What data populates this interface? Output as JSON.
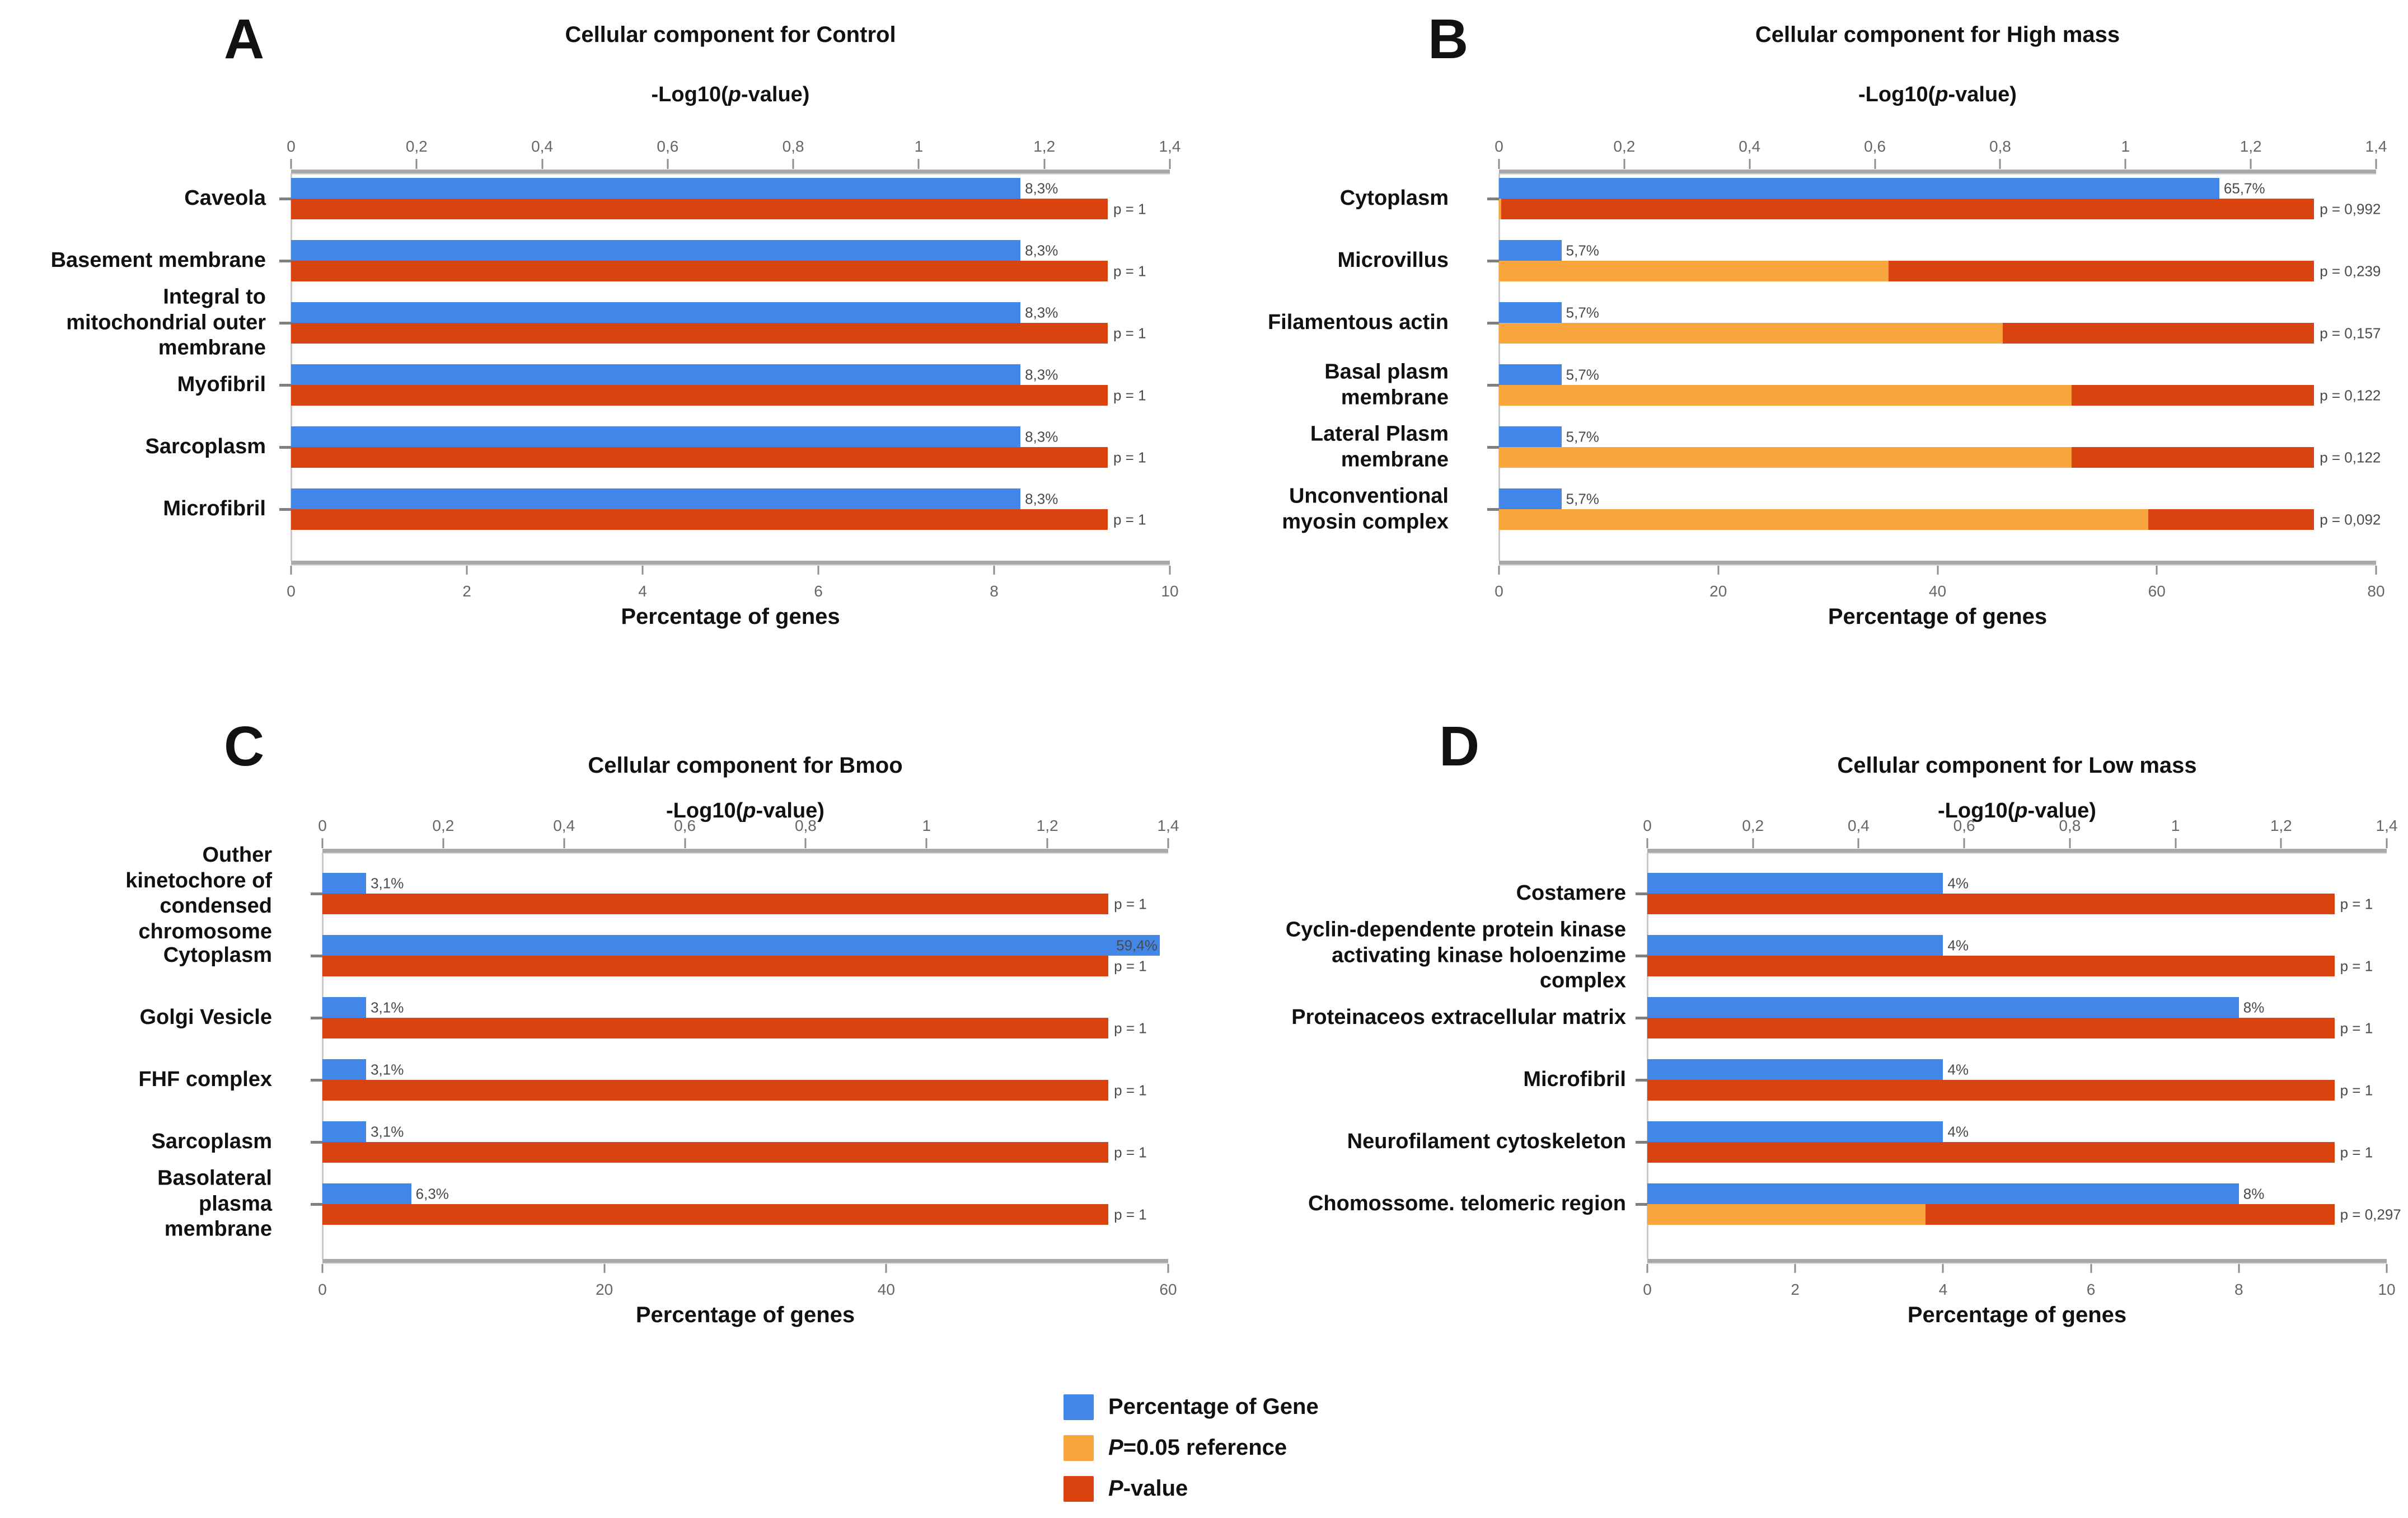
{
  "colors": {
    "blue": "#4287E8",
    "orange": "#F9A63E",
    "red": "#D8430F",
    "axis_line": "#A9A9A9",
    "tick_label": "#666666",
    "value_label": "#4A4A4A"
  },
  "legend": {
    "items": [
      {
        "color_key": "blue",
        "em": "",
        "text": "Percentage of Gene"
      },
      {
        "color_key": "orange",
        "em": "P",
        "text": "=0.05 reference"
      },
      {
        "color_key": "red",
        "em": "P",
        "text": "-value"
      }
    ]
  },
  "chart_data": [
    {
      "type": "bar",
      "panel": "A",
      "title": "Cellular component for Control",
      "top_axis": {
        "label_pre": "-Log10(",
        "label_em": "p",
        "label_post": "-value)",
        "max": 1.4,
        "ticks": [
          "0",
          "0,2",
          "0,4",
          "0,6",
          "0,8",
          "1",
          "1,2",
          "1,4"
        ]
      },
      "bottom_axis": {
        "label": "Percentage of genes",
        "max": 10,
        "ticks": [
          "0",
          "2",
          "4",
          "6",
          "8",
          "10"
        ]
      },
      "reference_p": 0.05,
      "rows": [
        {
          "category": "Caveola",
          "percent": 8.3,
          "percent_label": "8,3%",
          "p": 1,
          "p_label": "p = 1"
        },
        {
          "category": "Basement membrane",
          "percent": 8.3,
          "percent_label": "8,3%",
          "p": 1,
          "p_label": "p = 1"
        },
        {
          "category": "Integral to\nmitochondrial outer\nmembrane",
          "percent": 8.3,
          "percent_label": "8,3%",
          "p": 1,
          "p_label": "p = 1"
        },
        {
          "category": "Myofibril",
          "percent": 8.3,
          "percent_label": "8,3%",
          "p": 1,
          "p_label": "p = 1"
        },
        {
          "category": "Sarcoplasm",
          "percent": 8.3,
          "percent_label": "8,3%",
          "p": 1,
          "p_label": "p = 1"
        },
        {
          "category": "Microfibril",
          "percent": 8.3,
          "percent_label": "8,3%",
          "p": 1,
          "p_label": "p = 1"
        }
      ]
    },
    {
      "type": "bar",
      "panel": "B",
      "title": "Cellular component for High mass",
      "top_axis": {
        "label_pre": "-Log10(",
        "label_em": "p",
        "label_post": "-value)",
        "max": 1.4,
        "ticks": [
          "0",
          "0,2",
          "0,4",
          "0,6",
          "0,8",
          "1",
          "1,2",
          "1,4"
        ]
      },
      "bottom_axis": {
        "label": "Percentage of genes",
        "max": 80,
        "ticks": [
          "0",
          "20",
          "40",
          "60",
          "80"
        ]
      },
      "reference_p": 0.05,
      "rows": [
        {
          "category": "Cytoplasm",
          "percent": 65.7,
          "percent_label": "65,7%",
          "p": 0.992,
          "p_label": "p = 0,992"
        },
        {
          "category": "Microvillus",
          "percent": 5.7,
          "percent_label": "5,7%",
          "p": 0.239,
          "p_label": "p = 0,239"
        },
        {
          "category": "Filamentous actin",
          "percent": 5.7,
          "percent_label": "5,7%",
          "p": 0.157,
          "p_label": "p = 0,157"
        },
        {
          "category": "Basal plasm\nmembrane",
          "percent": 5.7,
          "percent_label": "5,7%",
          "p": 0.122,
          "p_label": "p = 0,122"
        },
        {
          "category": "Lateral Plasm\nmembrane",
          "percent": 5.7,
          "percent_label": "5,7%",
          "p": 0.122,
          "p_label": "p = 0,122"
        },
        {
          "category": "Unconventional\nmyosin complex",
          "percent": 5.7,
          "percent_label": "5,7%",
          "p": 0.092,
          "p_label": "p = 0,092"
        }
      ]
    },
    {
      "type": "bar",
      "panel": "C",
      "title": "Cellular component for Bmoo",
      "top_axis": {
        "label_pre": "-Log10(",
        "label_em": "p",
        "label_post": "-value)",
        "max": 1.4,
        "ticks": [
          "0",
          "0,2",
          "0,4",
          "0,6",
          "0,8",
          "1",
          "1,2",
          "1,4"
        ]
      },
      "bottom_axis": {
        "label": "Percentage of genes",
        "max": 60,
        "ticks": [
          "0",
          "20",
          "40",
          "60"
        ]
      },
      "reference_p": 0.05,
      "rows": [
        {
          "category": "Outher\nkinetochore of\ncondensed\nchromosome",
          "percent": 3.1,
          "percent_label": "3,1%",
          "p": 1,
          "p_label": "p = 1"
        },
        {
          "category": "Cytoplasm",
          "percent": 59.4,
          "percent_label": "59,4%",
          "percent_label_inside": true,
          "p": 1,
          "p_label": "p = 1"
        },
        {
          "category": "Golgi Vesicle",
          "percent": 3.1,
          "percent_label": "3,1%",
          "p": 1,
          "p_label": "p = 1"
        },
        {
          "category": "FHF complex",
          "percent": 3.1,
          "percent_label": "3,1%",
          "p": 1,
          "p_label": "p = 1"
        },
        {
          "category": "Sarcoplasm",
          "percent": 3.1,
          "percent_label": "3,1%",
          "p": 1,
          "p_label": "p = 1"
        },
        {
          "category": "Basolateral\nplasma\nmembrane",
          "percent": 6.3,
          "percent_label": "6,3%",
          "p": 1,
          "p_label": "p = 1"
        }
      ]
    },
    {
      "type": "bar",
      "panel": "D",
      "title": "Cellular component for Low mass",
      "top_axis": {
        "label_pre": "-Log10(",
        "label_em": "p",
        "label_post": "-value)",
        "max": 1.4,
        "ticks": [
          "0",
          "0,2",
          "0,4",
          "0,6",
          "0,8",
          "1",
          "1,2",
          "1,4"
        ]
      },
      "bottom_axis": {
        "label": "Percentage of genes",
        "max": 10,
        "ticks": [
          "0",
          "2",
          "4",
          "6",
          "8",
          "10"
        ]
      },
      "reference_p": 0.05,
      "rows": [
        {
          "category": "Costamere",
          "percent": 4,
          "percent_label": "4%",
          "p": 1,
          "p_label": "p = 1"
        },
        {
          "category": "Cyclin-dependente protein kinase\nactivating kinase holoenzime\ncomplex",
          "percent": 4,
          "percent_label": "4%",
          "p": 1,
          "p_label": "p = 1"
        },
        {
          "category": "Proteinaceos extracellular matrix",
          "percent": 8,
          "percent_label": "8%",
          "p": 1,
          "p_label": "p = 1"
        },
        {
          "category": "Microfibril",
          "percent": 4,
          "percent_label": "4%",
          "p": 1,
          "p_label": "p = 1"
        },
        {
          "category": "Neurofilament cytoskeleton",
          "percent": 4,
          "percent_label": "4%",
          "p": 1,
          "p_label": "p = 1"
        },
        {
          "category": "Chomossome. telomeric region",
          "percent": 8,
          "percent_label": "8%",
          "p": 0.297,
          "p_label": "p = 0,297"
        }
      ]
    }
  ]
}
